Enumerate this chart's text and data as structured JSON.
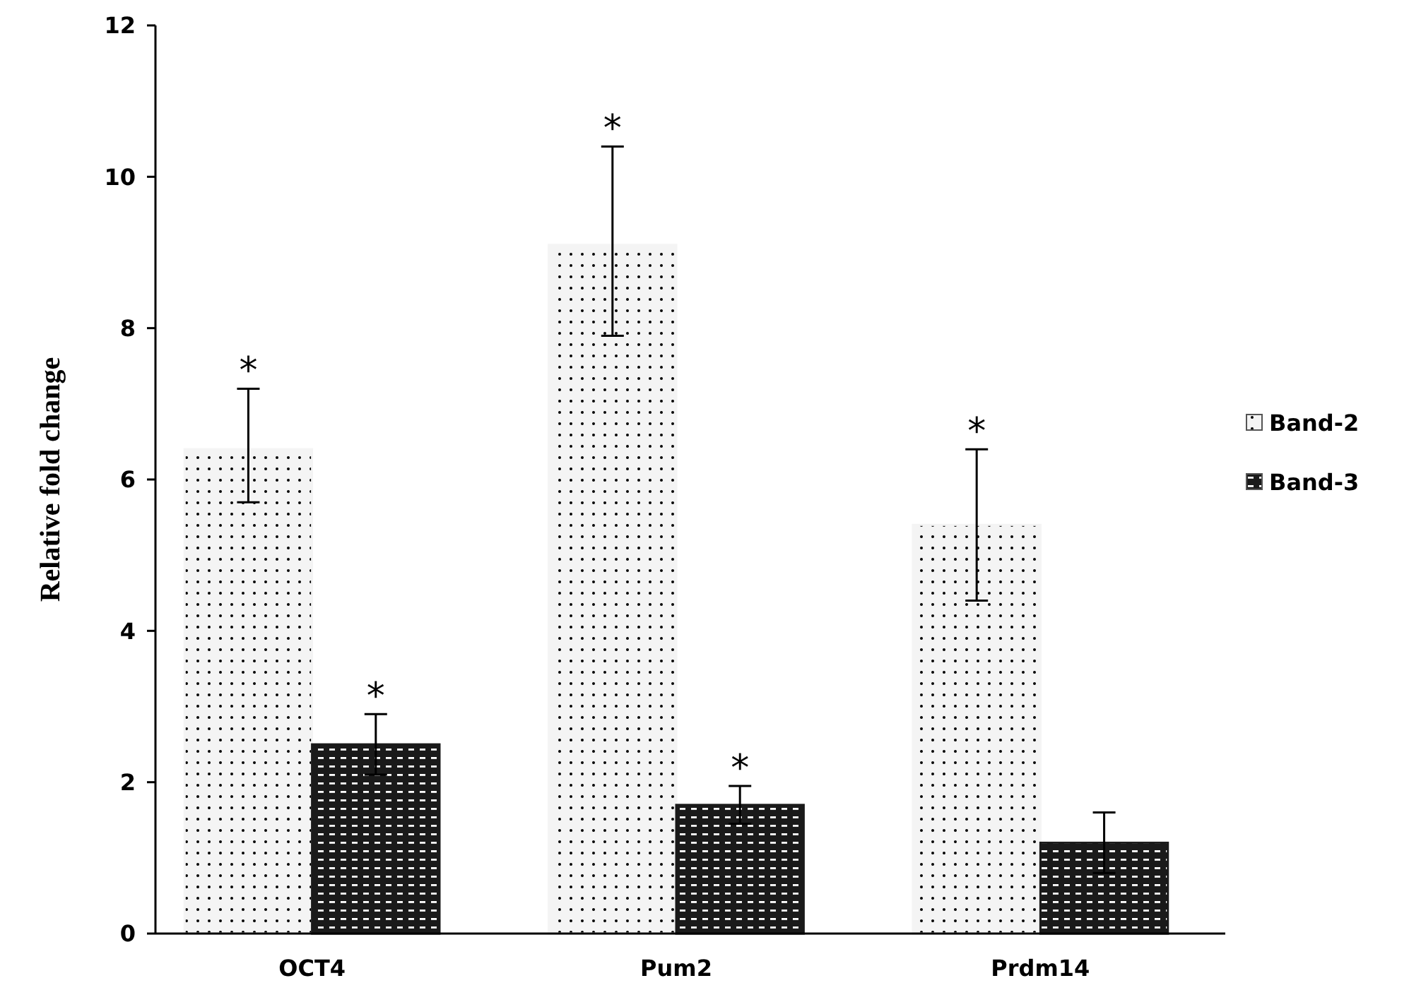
{
  "chart_data": {
    "type": "bar",
    "ylabel": "Relative fold change",
    "categories": [
      "OCT4",
      "Pum2",
      "Prdm14"
    ],
    "series": [
      {
        "name": "Band-2",
        "color": "#f4f4f4",
        "values": [
          6.4,
          9.1,
          5.4
        ],
        "errors": [
          [
            5.7,
            7.2
          ],
          [
            7.9,
            10.4
          ],
          [
            4.4,
            6.4
          ]
        ],
        "value_labels": [
          "*",
          "*",
          "*"
        ]
      },
      {
        "name": "Band-3",
        "color": "#1a1a1a",
        "values": [
          2.5,
          1.7,
          1.2
        ],
        "errors": [
          0.4,
          0.25,
          0.4
        ],
        "value_labels": [
          "*",
          "*",
          null
        ]
      }
    ],
    "ylim": [
      0,
      12
    ],
    "yticks": [
      0,
      2,
      4,
      6,
      8,
      10,
      12
    ],
    "grid": false,
    "legend": "right"
  }
}
